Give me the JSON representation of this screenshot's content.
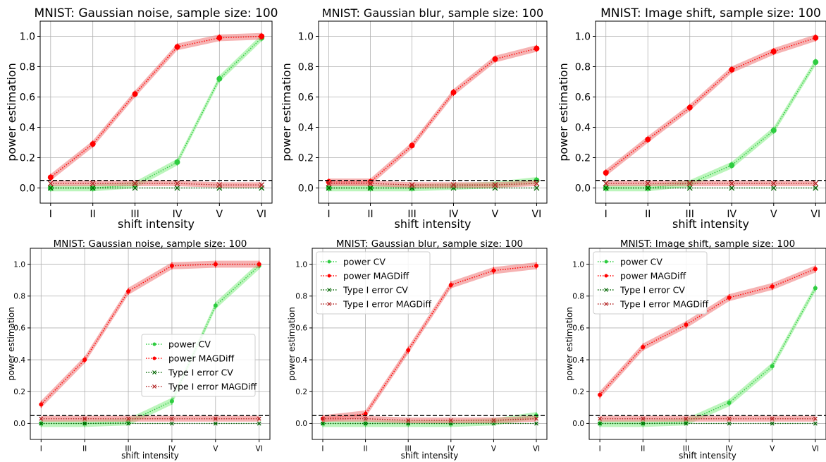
{
  "chart_data": [
    {
      "type": "line",
      "title": "MNIST: Gaussian noise, sample size: 100",
      "xlabel": "shift intensity",
      "ylabel": "power estimation",
      "categories": [
        "I",
        "II",
        "III",
        "IV",
        "V",
        "VI"
      ],
      "ylim": [
        -0.1,
        1.1
      ],
      "yticks": [
        "0.0",
        "0.2",
        "0.4",
        "0.6",
        "0.8",
        "1.0"
      ],
      "threshold": 0.05,
      "grid": true,
      "legend": "none",
      "series": [
        {
          "key": "power_cv",
          "values": [
            0.0,
            0.0,
            0.02,
            0.17,
            0.72,
            0.99
          ]
        },
        {
          "key": "power_magdiff",
          "values": [
            0.07,
            0.29,
            0.62,
            0.93,
            0.99,
            1.0
          ]
        },
        {
          "key": "type1_cv",
          "values": [
            0.0,
            0.0,
            0.0,
            0.0,
            0.0,
            0.0
          ]
        },
        {
          "key": "type1_magdiff",
          "values": [
            0.03,
            0.03,
            0.03,
            0.03,
            0.02,
            0.02
          ]
        }
      ]
    },
    {
      "type": "line",
      "title": "MNIST: Gaussian blur, sample size: 100",
      "xlabel": "shift intensity",
      "ylabel": "power estimation",
      "categories": [
        "I",
        "II",
        "III",
        "IV",
        "V",
        "VI"
      ],
      "ylim": [
        -0.1,
        1.1
      ],
      "yticks": [
        "0.0",
        "0.2",
        "0.4",
        "0.6",
        "0.8",
        "1.0"
      ],
      "threshold": 0.05,
      "grid": true,
      "legend": "none",
      "series": [
        {
          "key": "power_cv",
          "values": [
            0.0,
            0.0,
            0.0,
            0.01,
            0.02,
            0.05
          ]
        },
        {
          "key": "power_magdiff",
          "values": [
            0.04,
            0.04,
            0.28,
            0.63,
            0.85,
            0.92
          ]
        },
        {
          "key": "type1_cv",
          "values": [
            0.0,
            0.0,
            0.0,
            0.0,
            0.0,
            0.0
          ]
        },
        {
          "key": "type1_magdiff",
          "values": [
            0.03,
            0.03,
            0.02,
            0.02,
            0.02,
            0.03
          ]
        }
      ]
    },
    {
      "type": "line",
      "title": "MNIST: Image shift, sample size: 100",
      "xlabel": "shift intensity",
      "ylabel": "power estimation",
      "categories": [
        "I",
        "II",
        "III",
        "IV",
        "V",
        "VI"
      ],
      "ylim": [
        -0.1,
        1.1
      ],
      "yticks": [
        "0.0",
        "0.2",
        "0.4",
        "0.6",
        "0.8",
        "1.0"
      ],
      "threshold": 0.05,
      "grid": true,
      "legend": "none",
      "series": [
        {
          "key": "power_cv",
          "values": [
            0.0,
            0.0,
            0.03,
            0.15,
            0.38,
            0.83
          ]
        },
        {
          "key": "power_magdiff",
          "values": [
            0.1,
            0.32,
            0.53,
            0.78,
            0.9,
            0.99
          ]
        },
        {
          "key": "type1_cv",
          "values": [
            0.0,
            0.0,
            0.0,
            0.0,
            0.0,
            0.0
          ]
        },
        {
          "key": "type1_magdiff",
          "values": [
            0.03,
            0.03,
            0.03,
            0.03,
            0.03,
            0.03
          ]
        }
      ]
    },
    {
      "type": "line",
      "title": "MNIST: Gaussian noise, sample size: 100",
      "xlabel": "shift intensity",
      "ylabel": "power estimation",
      "categories": [
        "I",
        "II",
        "III",
        "IV",
        "V",
        "VI"
      ],
      "ylim": [
        -0.1,
        1.1
      ],
      "yticks": [
        "0.0",
        "0.2",
        "0.4",
        "0.6",
        "0.8",
        "1.0"
      ],
      "threshold": 0.05,
      "grid": true,
      "legend": "center-right",
      "series": [
        {
          "key": "power_cv",
          "name": "power CV",
          "values": [
            0.0,
            0.0,
            0.01,
            0.14,
            0.74,
            0.99
          ]
        },
        {
          "key": "power_magdiff",
          "name": "power MAGDiff",
          "values": [
            0.12,
            0.4,
            0.83,
            0.99,
            1.0,
            1.0
          ]
        },
        {
          "key": "type1_cv",
          "name": "Type I error CV",
          "values": [
            0.0,
            0.0,
            0.0,
            0.0,
            0.0,
            0.0
          ]
        },
        {
          "key": "type1_magdiff",
          "name": "Type I error MAGDiff",
          "values": [
            0.03,
            0.03,
            0.03,
            0.03,
            0.03,
            0.03
          ]
        }
      ]
    },
    {
      "type": "line",
      "title": "MNIST: Gaussian blur, sample size: 100",
      "xlabel": "shift intensity",
      "ylabel": "power estimation",
      "categories": [
        "I",
        "II",
        "III",
        "IV",
        "V",
        "VI"
      ],
      "ylim": [
        -0.1,
        1.1
      ],
      "yticks": [
        "0.0",
        "0.2",
        "0.4",
        "0.6",
        "0.8",
        "1.0"
      ],
      "threshold": 0.05,
      "grid": true,
      "legend": "top-left",
      "series": [
        {
          "key": "power_cv",
          "name": "power CV",
          "values": [
            0.0,
            0.0,
            0.0,
            0.0,
            0.01,
            0.05
          ]
        },
        {
          "key": "power_magdiff",
          "name": "power MAGDiff",
          "values": [
            0.03,
            0.06,
            0.46,
            0.87,
            0.96,
            0.99
          ]
        },
        {
          "key": "type1_cv",
          "name": "Type I error CV",
          "values": [
            0.0,
            0.0,
            0.0,
            0.0,
            0.0,
            0.0
          ]
        },
        {
          "key": "type1_magdiff",
          "name": "Type I error MAGDiff",
          "values": [
            0.03,
            0.03,
            0.02,
            0.02,
            0.02,
            0.03
          ]
        }
      ]
    },
    {
      "type": "line",
      "title": "MNIST: Image shift, sample size: 100",
      "xlabel": "shift intensity",
      "ylabel": "power estimation",
      "categories": [
        "I",
        "II",
        "III",
        "IV",
        "V",
        "VI"
      ],
      "ylim": [
        -0.1,
        1.1
      ],
      "yticks": [
        "0.0",
        "0.2",
        "0.4",
        "0.6",
        "0.8",
        "1.0"
      ],
      "threshold": 0.05,
      "grid": true,
      "legend": "top-left",
      "series": [
        {
          "key": "power_cv",
          "name": "power CV",
          "values": [
            0.0,
            0.0,
            0.01,
            0.13,
            0.36,
            0.85
          ]
        },
        {
          "key": "power_magdiff",
          "name": "power MAGDiff",
          "values": [
            0.18,
            0.48,
            0.62,
            0.79,
            0.86,
            0.97
          ]
        },
        {
          "key": "type1_cv",
          "name": "Type I error CV",
          "values": [
            0.0,
            0.0,
            0.0,
            0.0,
            0.0,
            0.0
          ]
        },
        {
          "key": "type1_magdiff",
          "name": "Type I error MAGDiff",
          "values": [
            0.03,
            0.03,
            0.03,
            0.03,
            0.03,
            0.03
          ]
        }
      ]
    }
  ],
  "colors": {
    "power_cv": "#2ecc40",
    "power_cv_band": "#90ee90",
    "power_magdiff": "#ff0000",
    "power_magdiff_band": "#f08080",
    "type1_cv": "#006400",
    "type1_magdiff": "#b22222",
    "threshold": "#000000",
    "grid": "#b0b0b0"
  }
}
